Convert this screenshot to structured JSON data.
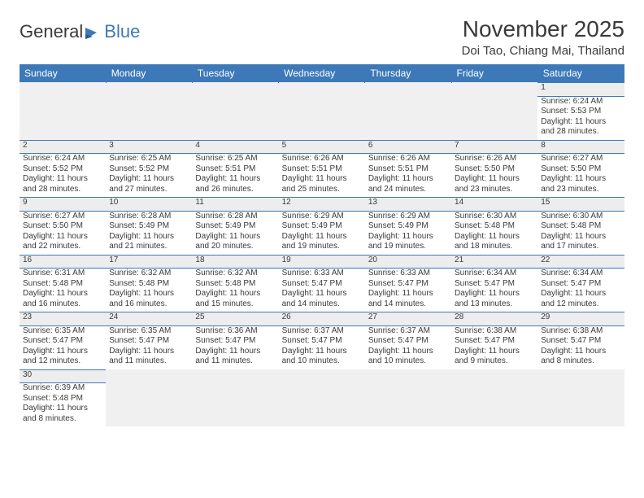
{
  "logo": {
    "text1": "General",
    "text2": "Blue"
  },
  "title": "November 2025",
  "location": "Doi Tao, Chiang Mai, Thailand",
  "colors": {
    "header_bg": "#3d79b8",
    "header_text": "#ffffff",
    "daynum_bg": "#ededed",
    "empty_bg": "#f0f0f0",
    "text": "#3a3a3a",
    "border": "#3d79b8"
  },
  "weekdays": [
    "Sunday",
    "Monday",
    "Tuesday",
    "Wednesday",
    "Thursday",
    "Friday",
    "Saturday"
  ],
  "weeks": [
    [
      null,
      null,
      null,
      null,
      null,
      null,
      {
        "d": "1",
        "sr": "6:24 AM",
        "ss": "5:53 PM",
        "dl": "11 hours and 28 minutes."
      }
    ],
    [
      {
        "d": "2",
        "sr": "6:24 AM",
        "ss": "5:52 PM",
        "dl": "11 hours and 28 minutes."
      },
      {
        "d": "3",
        "sr": "6:25 AM",
        "ss": "5:52 PM",
        "dl": "11 hours and 27 minutes."
      },
      {
        "d": "4",
        "sr": "6:25 AM",
        "ss": "5:51 PM",
        "dl": "11 hours and 26 minutes."
      },
      {
        "d": "5",
        "sr": "6:26 AM",
        "ss": "5:51 PM",
        "dl": "11 hours and 25 minutes."
      },
      {
        "d": "6",
        "sr": "6:26 AM",
        "ss": "5:51 PM",
        "dl": "11 hours and 24 minutes."
      },
      {
        "d": "7",
        "sr": "6:26 AM",
        "ss": "5:50 PM",
        "dl": "11 hours and 23 minutes."
      },
      {
        "d": "8",
        "sr": "6:27 AM",
        "ss": "5:50 PM",
        "dl": "11 hours and 23 minutes."
      }
    ],
    [
      {
        "d": "9",
        "sr": "6:27 AM",
        "ss": "5:50 PM",
        "dl": "11 hours and 22 minutes."
      },
      {
        "d": "10",
        "sr": "6:28 AM",
        "ss": "5:49 PM",
        "dl": "11 hours and 21 minutes."
      },
      {
        "d": "11",
        "sr": "6:28 AM",
        "ss": "5:49 PM",
        "dl": "11 hours and 20 minutes."
      },
      {
        "d": "12",
        "sr": "6:29 AM",
        "ss": "5:49 PM",
        "dl": "11 hours and 19 minutes."
      },
      {
        "d": "13",
        "sr": "6:29 AM",
        "ss": "5:49 PM",
        "dl": "11 hours and 19 minutes."
      },
      {
        "d": "14",
        "sr": "6:30 AM",
        "ss": "5:48 PM",
        "dl": "11 hours and 18 minutes."
      },
      {
        "d": "15",
        "sr": "6:30 AM",
        "ss": "5:48 PM",
        "dl": "11 hours and 17 minutes."
      }
    ],
    [
      {
        "d": "16",
        "sr": "6:31 AM",
        "ss": "5:48 PM",
        "dl": "11 hours and 16 minutes."
      },
      {
        "d": "17",
        "sr": "6:32 AM",
        "ss": "5:48 PM",
        "dl": "11 hours and 16 minutes."
      },
      {
        "d": "18",
        "sr": "6:32 AM",
        "ss": "5:48 PM",
        "dl": "11 hours and 15 minutes."
      },
      {
        "d": "19",
        "sr": "6:33 AM",
        "ss": "5:47 PM",
        "dl": "11 hours and 14 minutes."
      },
      {
        "d": "20",
        "sr": "6:33 AM",
        "ss": "5:47 PM",
        "dl": "11 hours and 14 minutes."
      },
      {
        "d": "21",
        "sr": "6:34 AM",
        "ss": "5:47 PM",
        "dl": "11 hours and 13 minutes."
      },
      {
        "d": "22",
        "sr": "6:34 AM",
        "ss": "5:47 PM",
        "dl": "11 hours and 12 minutes."
      }
    ],
    [
      {
        "d": "23",
        "sr": "6:35 AM",
        "ss": "5:47 PM",
        "dl": "11 hours and 12 minutes."
      },
      {
        "d": "24",
        "sr": "6:35 AM",
        "ss": "5:47 PM",
        "dl": "11 hours and 11 minutes."
      },
      {
        "d": "25",
        "sr": "6:36 AM",
        "ss": "5:47 PM",
        "dl": "11 hours and 11 minutes."
      },
      {
        "d": "26",
        "sr": "6:37 AM",
        "ss": "5:47 PM",
        "dl": "11 hours and 10 minutes."
      },
      {
        "d": "27",
        "sr": "6:37 AM",
        "ss": "5:47 PM",
        "dl": "11 hours and 10 minutes."
      },
      {
        "d": "28",
        "sr": "6:38 AM",
        "ss": "5:47 PM",
        "dl": "11 hours and 9 minutes."
      },
      {
        "d": "29",
        "sr": "6:38 AM",
        "ss": "5:47 PM",
        "dl": "11 hours and 8 minutes."
      }
    ],
    [
      {
        "d": "30",
        "sr": "6:39 AM",
        "ss": "5:48 PM",
        "dl": "11 hours and 8 minutes."
      },
      null,
      null,
      null,
      null,
      null,
      null
    ]
  ],
  "labels": {
    "sunrise": "Sunrise:",
    "sunset": "Sunset:",
    "daylight": "Daylight:"
  }
}
